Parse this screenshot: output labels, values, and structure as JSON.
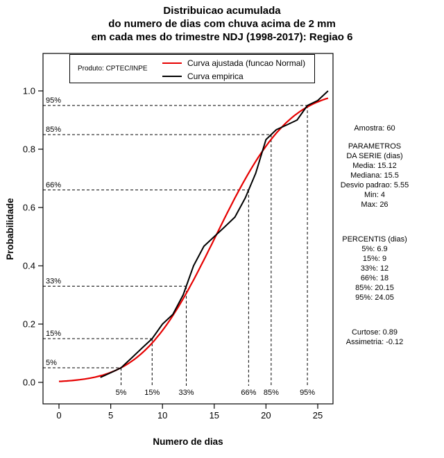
{
  "legend": {
    "product": "Produto: CPTEC/INPE"
  },
  "chart_data": {
    "type": "line",
    "title_lines": [
      "Distribuicao acumulada",
      "do numero de dias com chuva acima de 2 mm",
      "em cada mes do trimestre NDJ (1998-2017): Regiao 6"
    ],
    "xlabel": "Numero de dias",
    "ylabel": "Probabilidade",
    "xlim": [
      0,
      26
    ],
    "ylim": [
      0,
      1
    ],
    "x_ticks": [
      0,
      5,
      10,
      15,
      20,
      25
    ],
    "y_ticks": [
      "0.0",
      "0.2",
      "0.4",
      "0.6",
      "0.8",
      "1.0"
    ],
    "grid": false,
    "legend_position": "top-inside",
    "series": [
      {
        "name": "Curva ajustada (funcao Normal)",
        "type": "normal_cdf",
        "color": "#e60000",
        "mean": 15.12,
        "sd": 5.55,
        "x_range": [
          0,
          26
        ]
      },
      {
        "name": "Curva empirica",
        "type": "points",
        "color": "#000000",
        "points": [
          [
            4,
            0.017
          ],
          [
            5,
            0.033
          ],
          [
            6,
            0.05
          ],
          [
            7,
            0.083
          ],
          [
            8,
            0.117
          ],
          [
            9,
            0.15
          ],
          [
            10,
            0.2
          ],
          [
            11,
            0.233
          ],
          [
            12,
            0.3
          ],
          [
            13,
            0.4
          ],
          [
            14,
            0.467
          ],
          [
            15,
            0.5
          ],
          [
            16,
            0.533
          ],
          [
            17,
            0.567
          ],
          [
            18,
            0.633
          ],
          [
            19,
            0.717
          ],
          [
            20,
            0.833
          ],
          [
            21,
            0.867
          ],
          [
            22,
            0.883
          ],
          [
            23,
            0.9
          ],
          [
            24,
            0.95
          ],
          [
            25,
            0.967
          ],
          [
            26,
            1
          ]
        ]
      }
    ],
    "percentile_guides": [
      {
        "label": "5%",
        "p": 0.05,
        "value_dias": 6.9
      },
      {
        "label": "15%",
        "p": 0.15,
        "value_dias": 9
      },
      {
        "label": "33%",
        "p": 0.33,
        "value_dias": 12
      },
      {
        "label": "66%",
        "p": 0.66,
        "value_dias": 18
      },
      {
        "label": "85%",
        "p": 0.85,
        "value_dias": 20.15
      },
      {
        "label": "95%",
        "p": 0.95,
        "value_dias": 24.05
      }
    ]
  },
  "stats_panel": {
    "sample": "Amostra: 60",
    "params_header": [
      "PARAMETROS",
      "DA SERIE (dias)"
    ],
    "params": [
      "Media: 15.12",
      "Mediana: 15.5",
      "Desvio padrao: 5.55",
      "Min: 4",
      "Max: 26"
    ],
    "percentis_header": "PERCENTIS (dias)",
    "percentis": [
      "5%: 6.9",
      "15%: 9",
      "33%: 12",
      "66%: 18",
      "85%: 20.15",
      "95%: 24.05"
    ],
    "moments": [
      "Curtose: 0.89",
      "Assimetria: -0.12"
    ]
  }
}
